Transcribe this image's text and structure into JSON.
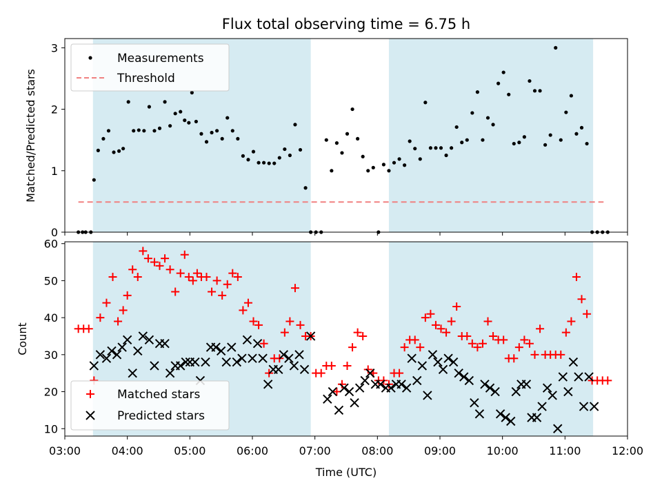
{
  "figure": {
    "title": "Flux total observing time = 6.75 h"
  },
  "chart_data": [
    {
      "type": "scatter",
      "panel": "top",
      "ylabel": "Matched/Predicted stars",
      "xlabel": "",
      "ylim": [
        0,
        3.15
      ],
      "yticks": [
        "0",
        "1",
        "2",
        "3"
      ],
      "xlim": [
        "03:00",
        "12:00"
      ],
      "shaded_spans": [
        [
          "03:27",
          "06:56"
        ],
        [
          "08:11",
          "11:27"
        ]
      ],
      "legend_position": "upper-left",
      "legend": [
        "Measurements",
        "Threshold"
      ],
      "threshold": {
        "name": "Threshold",
        "value": 0.49,
        "x_start": "03:13",
        "x_end": "11:37",
        "color": "#f08080"
      },
      "series": [
        {
          "name": "Measurements",
          "color": "#000000",
          "x": [
            "03:13",
            "03:17",
            "03:20",
            "03:25",
            "03:28",
            "03:32",
            "03:37",
            "03:42",
            "03:47",
            "03:52",
            "03:56",
            "04:01",
            "04:06",
            "04:11",
            "04:16",
            "04:21",
            "04:26",
            "04:31",
            "04:36",
            "04:41",
            "04:46",
            "04:51",
            "04:55",
            "04:59",
            "05:02",
            "05:06",
            "05:11",
            "05:16",
            "05:21",
            "05:26",
            "05:31",
            "05:36",
            "05:41",
            "05:46",
            "05:51",
            "05:56",
            "06:01",
            "06:06",
            "06:11",
            "06:16",
            "06:21",
            "06:26",
            "06:31",
            "06:36",
            "06:41",
            "06:46",
            "06:51",
            "06:56",
            "07:01",
            "07:06",
            "07:11",
            "07:16",
            "07:21",
            "07:26",
            "07:31",
            "07:36",
            "07:41",
            "07:46",
            "07:51",
            "07:56",
            "08:01",
            "08:06",
            "08:11",
            "08:16",
            "08:21",
            "08:26",
            "08:31",
            "08:36",
            "08:41",
            "08:46",
            "08:51",
            "08:56",
            "09:01",
            "09:06",
            "09:11",
            "09:16",
            "09:21",
            "09:26",
            "09:31",
            "09:36",
            "09:41",
            "09:46",
            "09:51",
            "09:56",
            "10:01",
            "10:06",
            "10:11",
            "10:16",
            "10:21",
            "10:26",
            "10:31",
            "10:36",
            "10:41",
            "10:46",
            "10:51",
            "10:56",
            "11:01",
            "11:06",
            "11:11",
            "11:16",
            "11:21",
            "11:26",
            "11:31",
            "11:36",
            "11:41"
          ],
          "y": [
            0,
            0,
            0,
            0,
            0.85,
            1.33,
            1.52,
            1.65,
            1.3,
            1.32,
            1.36,
            2.12,
            1.65,
            1.66,
            1.65,
            2.04,
            1.65,
            1.69,
            2.12,
            1.73,
            1.93,
            1.96,
            1.82,
            1.78,
            2.27,
            1.8,
            1.6,
            1.47,
            1.62,
            1.65,
            1.52,
            1.86,
            1.65,
            1.52,
            1.24,
            1.18,
            1.31,
            1.13,
            1.13,
            1.12,
            1.12,
            1.21,
            1.35,
            1.25,
            1.75,
            1.34,
            0.72,
            0,
            0,
            0,
            1.5,
            1.0,
            1.45,
            1.29,
            1.6,
            2.0,
            1.52,
            1.23,
            1.0,
            1.05,
            0,
            1.1,
            1.0,
            1.13,
            1.19,
            1.09,
            1.48,
            1.36,
            1.19,
            2.11,
            1.37,
            1.37,
            1.37,
            1.25,
            1.37,
            1.71,
            1.46,
            1.5,
            1.94,
            2.28,
            1.5,
            1.86,
            1.75,
            2.42,
            2.6,
            2.24,
            1.44,
            1.46,
            1.55,
            2.46,
            2.3,
            2.3,
            1.42,
            1.58,
            3.0,
            1.5,
            1.95,
            2.22,
            1.6,
            1.7,
            1.44,
            0,
            0,
            0,
            0
          ]
        }
      ]
    },
    {
      "type": "scatter",
      "panel": "bottom",
      "ylabel": "Count",
      "xlabel": "Time (UTC)",
      "ylim": [
        8,
        60.5
      ],
      "yticks": [
        "10",
        "20",
        "30",
        "40",
        "50",
        "60"
      ],
      "xlim": [
        "03:00",
        "12:00"
      ],
      "xticks": [
        "03:00",
        "04:00",
        "05:00",
        "06:00",
        "07:00",
        "08:00",
        "09:00",
        "10:00",
        "11:00",
        "12:00"
      ],
      "shaded_spans": [
        [
          "03:27",
          "06:56"
        ],
        [
          "08:11",
          "11:27"
        ]
      ],
      "legend_position": "lower-left",
      "legend": [
        "Matched stars",
        "Predicted stars"
      ],
      "series": [
        {
          "name": "Matched stars",
          "marker": "+",
          "color": "#ff0000",
          "x": [
            "03:13",
            "03:18",
            "03:23",
            "03:28",
            "03:34",
            "03:40",
            "03:46",
            "03:51",
            "03:56",
            "04:00",
            "04:05",
            "04:10",
            "04:15",
            "04:20",
            "04:26",
            "04:31",
            "04:36",
            "04:41",
            "04:46",
            "04:51",
            "04:55",
            "04:59",
            "05:03",
            "05:07",
            "05:11",
            "05:16",
            "05:21",
            "05:26",
            "05:31",
            "05:36",
            "05:41",
            "05:46",
            "05:51",
            "05:56",
            "06:01",
            "06:06",
            "06:11",
            "06:16",
            "06:21",
            "06:26",
            "06:31",
            "06:36",
            "06:41",
            "06:46",
            "06:51",
            "06:56",
            "07:01",
            "07:06",
            "07:11",
            "07:16",
            "07:21",
            "07:26",
            "07:31",
            "07:36",
            "07:41",
            "07:46",
            "07:51",
            "07:56",
            "08:01",
            "08:06",
            "08:11",
            "08:16",
            "08:21",
            "08:26",
            "08:31",
            "08:36",
            "08:41",
            "08:46",
            "08:51",
            "08:56",
            "09:01",
            "09:06",
            "09:11",
            "09:16",
            "09:21",
            "09:26",
            "09:31",
            "09:36",
            "09:41",
            "09:46",
            "09:51",
            "09:56",
            "10:01",
            "10:06",
            "10:11",
            "10:16",
            "10:21",
            "10:26",
            "10:31",
            "10:36",
            "10:41",
            "10:46",
            "10:51",
            "10:56",
            "11:01",
            "11:06",
            "11:11",
            "11:16",
            "11:21",
            "11:26",
            "11:31",
            "11:36",
            "11:41"
          ],
          "y": [
            37,
            37,
            37,
            23,
            40,
            44,
            51,
            39,
            42,
            46,
            53,
            51,
            58,
            56,
            55,
            54,
            56,
            53,
            47,
            52,
            57,
            51,
            50,
            52,
            51,
            51,
            47,
            50,
            46,
            49,
            52,
            51,
            42,
            44,
            39,
            38,
            33,
            25,
            29,
            29,
            36,
            39,
            48,
            38,
            35,
            35,
            25,
            25,
            27,
            27,
            20,
            22,
            27,
            32,
            36,
            35,
            26,
            25,
            23,
            23,
            22,
            25,
            25,
            32,
            34,
            34,
            32,
            40,
            41,
            38,
            37,
            36,
            39,
            43,
            35,
            35,
            33,
            32,
            33,
            39,
            35,
            34,
            34,
            29,
            29,
            32,
            34,
            33,
            30,
            37,
            30,
            30,
            30,
            30,
            36,
            39,
            51,
            45,
            41,
            23,
            23,
            23,
            23
          ]
        },
        {
          "name": "Predicted stars",
          "marker": "x",
          "color": "#000000",
          "x": [
            "03:28",
            "03:34",
            "03:40",
            "03:45",
            "03:50",
            "03:55",
            "04:00",
            "04:05",
            "04:10",
            "04:15",
            "04:21",
            "04:26",
            "04:31",
            "04:36",
            "04:41",
            "04:46",
            "04:51",
            "04:56",
            "05:00",
            "05:05",
            "05:10",
            "05:15",
            "05:20",
            "05:25",
            "05:30",
            "05:35",
            "05:40",
            "05:45",
            "05:50",
            "05:55",
            "06:00",
            "06:05",
            "06:10",
            "06:15",
            "06:20",
            "06:25",
            "06:30",
            "06:35",
            "06:40",
            "06:45",
            "06:50",
            "06:56",
            "07:12",
            "07:17",
            "07:23",
            "07:28",
            "07:33",
            "07:38",
            "07:43",
            "07:48",
            "07:53",
            "07:58",
            "08:03",
            "08:08",
            "08:13",
            "08:18",
            "08:23",
            "08:28",
            "08:33",
            "08:38",
            "08:43",
            "08:48",
            "08:53",
            "08:58",
            "09:03",
            "09:08",
            "09:13",
            "09:18",
            "09:23",
            "09:28",
            "09:33",
            "09:38",
            "09:43",
            "09:48",
            "09:53",
            "09:58",
            "10:03",
            "10:08",
            "10:13",
            "10:18",
            "10:23",
            "10:28",
            "10:33",
            "10:38",
            "10:43",
            "10:48",
            "10:53",
            "10:58",
            "11:03",
            "11:08",
            "11:13",
            "11:18",
            "11:23",
            "11:28"
          ],
          "y": [
            27,
            30,
            29,
            31,
            30,
            32,
            34,
            25,
            31,
            35,
            34,
            27,
            33,
            33,
            25,
            27,
            27,
            28,
            28,
            28,
            23,
            28,
            32,
            32,
            31,
            28,
            32,
            28,
            29,
            34,
            29,
            33,
            29,
            22,
            26,
            26,
            30,
            29,
            27,
            30,
            26,
            35,
            18,
            20,
            15,
            21,
            20,
            17,
            21,
            23,
            25,
            22,
            22,
            21,
            21,
            22,
            22,
            21,
            29,
            23,
            27,
            19,
            30,
            28,
            26,
            29,
            28,
            25,
            24,
            23,
            17,
            14,
            22,
            21,
            20,
            14,
            13,
            12,
            20,
            22,
            22,
            13,
            13,
            16,
            21,
            19,
            10,
            24,
            20,
            28,
            24,
            16,
            24,
            16
          ]
        }
      ]
    }
  ]
}
